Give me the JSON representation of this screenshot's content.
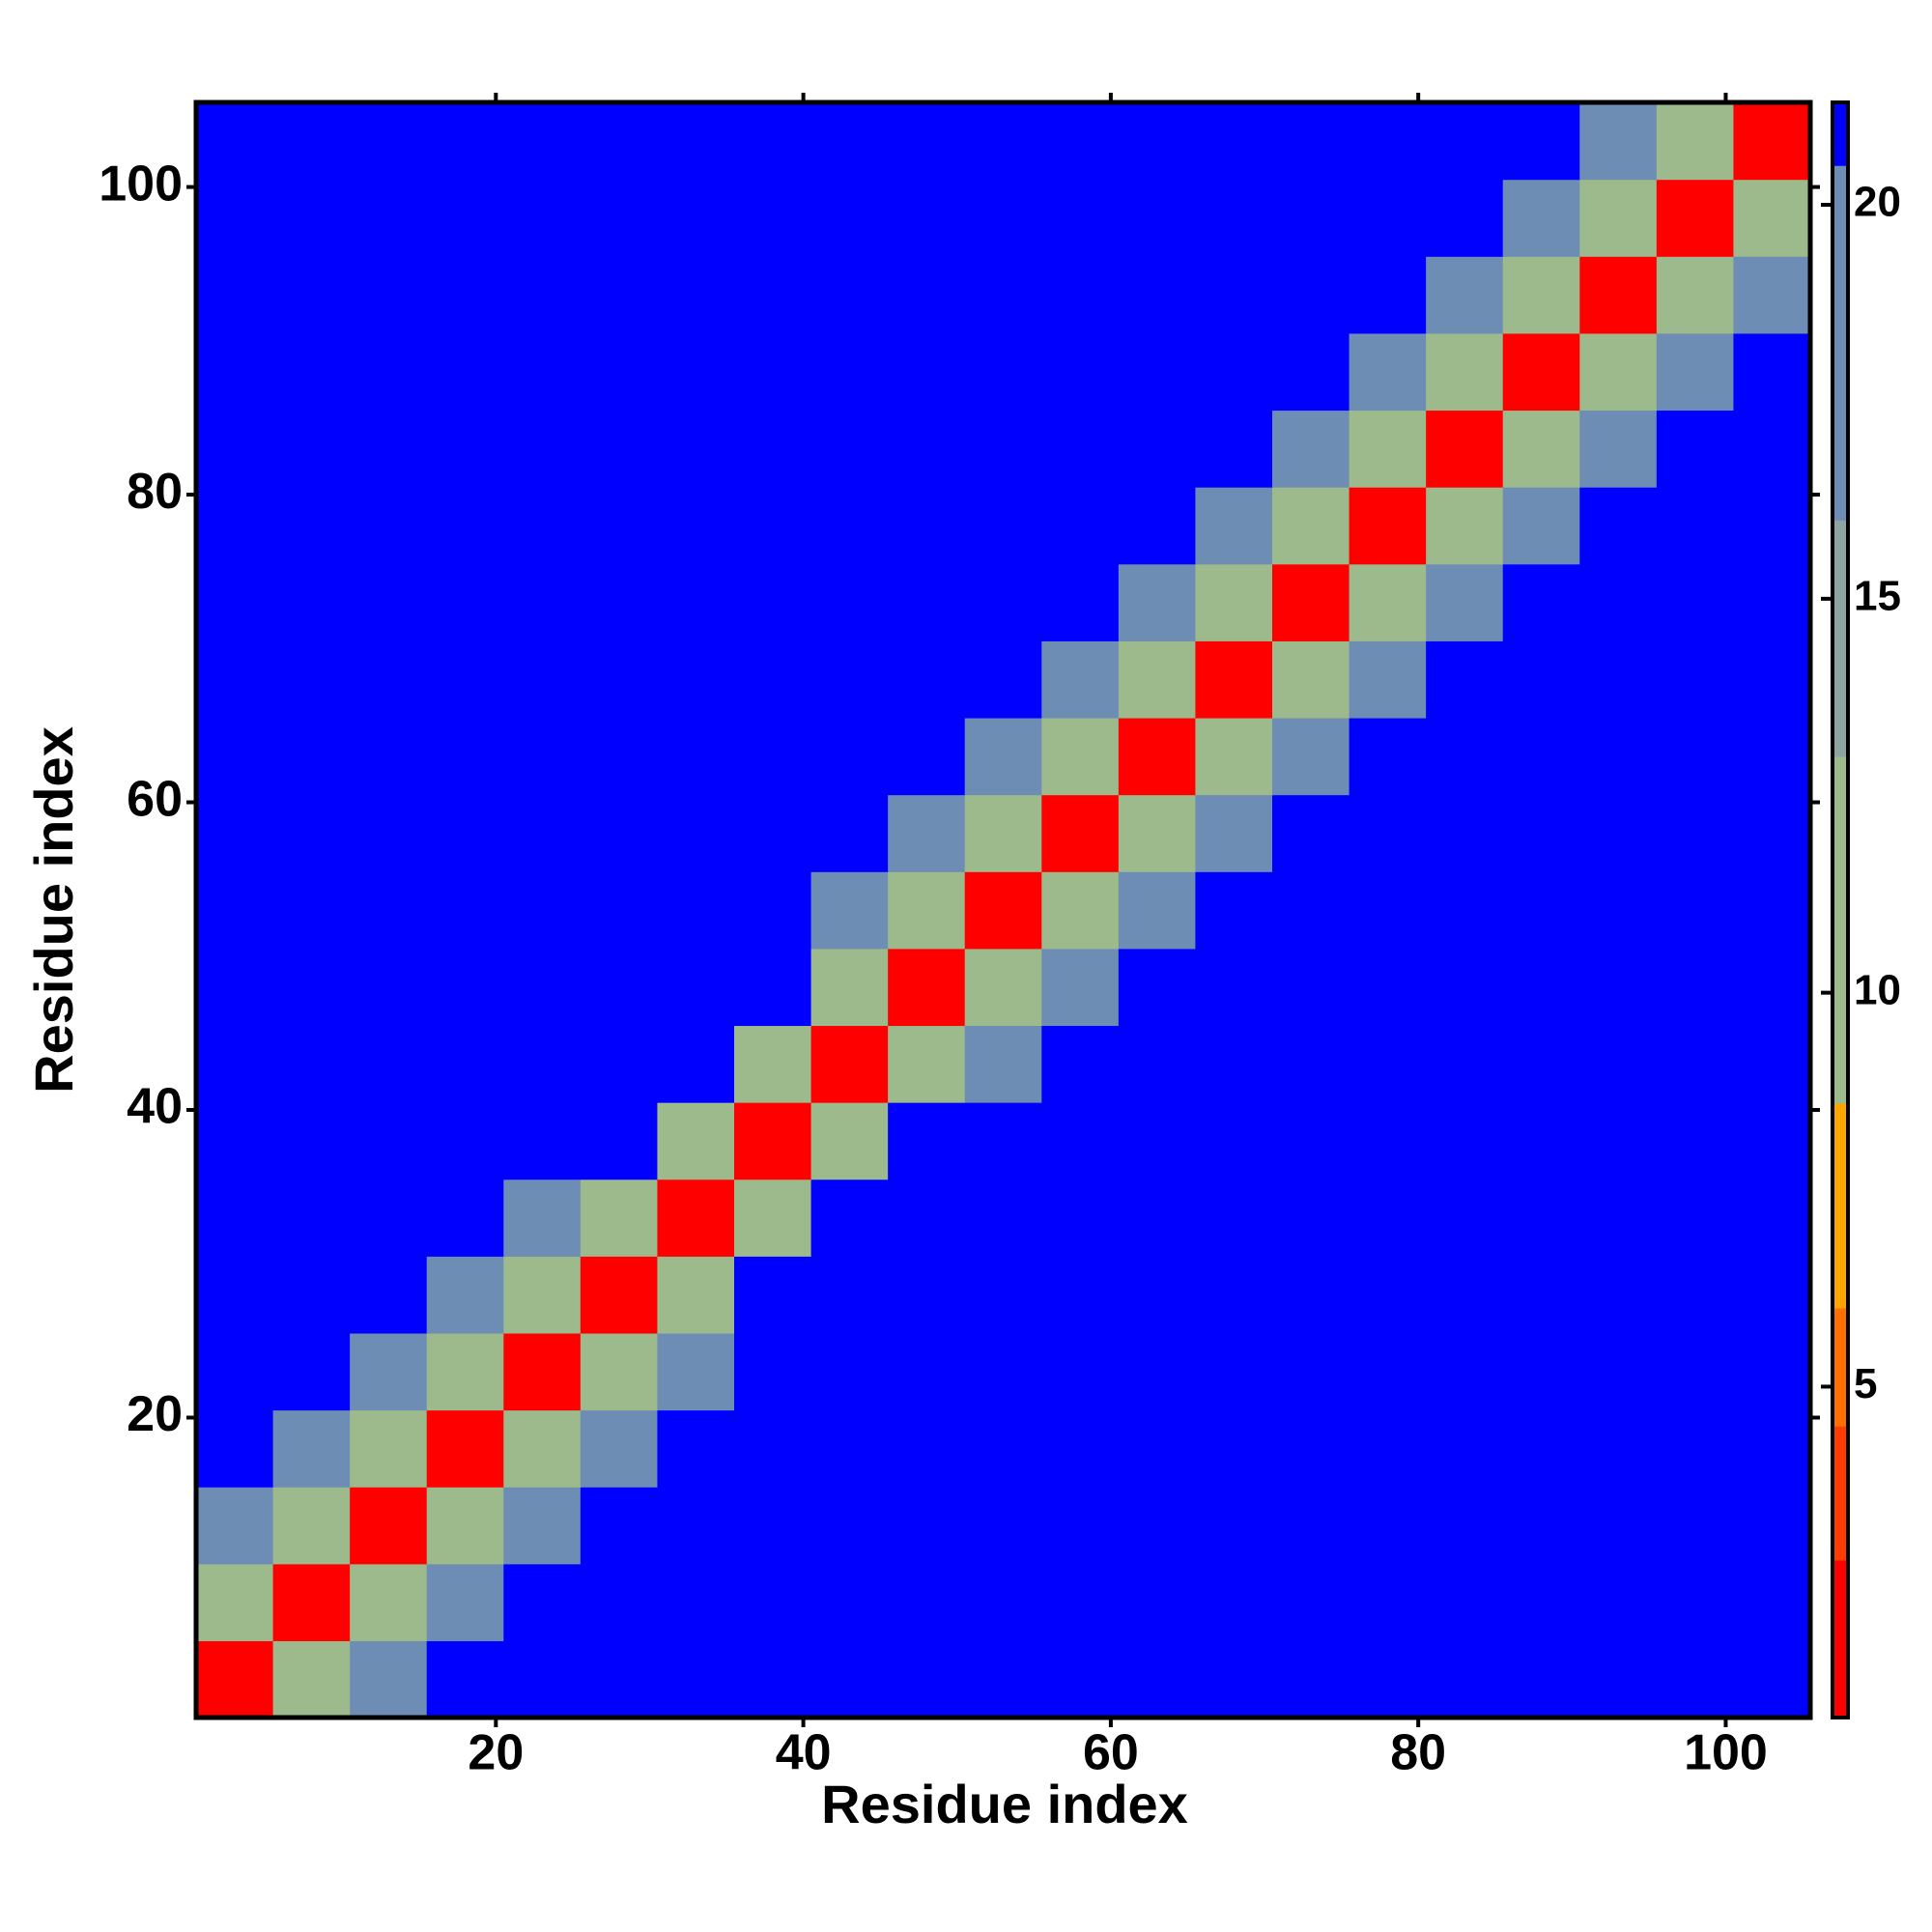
{
  "chart_data": {
    "type": "heatmap",
    "x_label": "Residue index",
    "y_label": "Residue index",
    "xbins": [
      0.5,
      5.5,
      10.5,
      15.5,
      20.5,
      25.5,
      30.5,
      35.5,
      40.5,
      45.5,
      50.5,
      55.5,
      60.5,
      65.5,
      70.5,
      75.5,
      80.5,
      85.5,
      90.5,
      95.5,
      100.5,
      105.5
    ],
    "ybins": [
      0.5,
      5.5,
      10.5,
      15.5,
      20.5,
      25.5,
      30.5,
      35.5,
      40.5,
      45.5,
      50.5,
      55.5,
      60.5,
      65.5,
      70.5,
      75.5,
      80.5,
      85.5,
      90.5,
      95.5,
      100.5,
      105.5
    ],
    "xlim": [
      0.5,
      105.5
    ],
    "ylim": [
      0.5,
      105.5
    ],
    "xticks": [
      20,
      40,
      60,
      80,
      100
    ],
    "yticks": [
      20,
      40,
      60,
      80,
      100
    ],
    "zlim": [
      0.8,
      21.3
    ],
    "zticks": [
      5,
      10,
      15,
      20
    ],
    "colorscale": [
      [
        0.8,
        "#ff0000"
      ],
      [
        2.8,
        "#ff3c00"
      ],
      [
        4.5,
        "#ff7000"
      ],
      [
        6,
        "#ffa500"
      ],
      [
        8.6,
        "#9cba8c"
      ],
      [
        13,
        "#8da4a0"
      ],
      [
        16,
        "#6d8db5"
      ],
      [
        20.5,
        "#0000ff"
      ]
    ],
    "z": [
      [
        2,
        10,
        16,
        21,
        21,
        21,
        21,
        21,
        21,
        21,
        21,
        21,
        21,
        21,
        21,
        21,
        21,
        21,
        21,
        21,
        21
      ],
      [
        10,
        2,
        10,
        16,
        21,
        21,
        21,
        21,
        21,
        21,
        21,
        21,
        21,
        21,
        21,
        21,
        21,
        21,
        21,
        21,
        21
      ],
      [
        16,
        10,
        2,
        10,
        16,
        21,
        21,
        21,
        21,
        21,
        21,
        21,
        21,
        21,
        21,
        21,
        21,
        21,
        21,
        21,
        21
      ],
      [
        21,
        16,
        10,
        2,
        10,
        16,
        21,
        21,
        21,
        21,
        21,
        21,
        21,
        21,
        21,
        21,
        21,
        21,
        21,
        21,
        21
      ],
      [
        21,
        21,
        16,
        10,
        2,
        10,
        16,
        21,
        21,
        21,
        21,
        21,
        21,
        21,
        21,
        21,
        21,
        21,
        21,
        21,
        21
      ],
      [
        21,
        21,
        21,
        16,
        10,
        2,
        10,
        21,
        21,
        21,
        21,
        21,
        21,
        21,
        21,
        21,
        21,
        21,
        21,
        21,
        21
      ],
      [
        21,
        21,
        21,
        21,
        16,
        10,
        2,
        10,
        21,
        21,
        21,
        21,
        21,
        21,
        21,
        21,
        21,
        21,
        21,
        21,
        21
      ],
      [
        21,
        21,
        21,
        21,
        21,
        21,
        10,
        2,
        10,
        21,
        21,
        21,
        21,
        21,
        21,
        21,
        21,
        21,
        21,
        21,
        21
      ],
      [
        21,
        21,
        21,
        21,
        21,
        21,
        21,
        10,
        2,
        10,
        16,
        21,
        21,
        21,
        21,
        21,
        21,
        21,
        21,
        21,
        21
      ],
      [
        21,
        21,
        21,
        21,
        21,
        21,
        21,
        21,
        10,
        2,
        10,
        16,
        21,
        21,
        21,
        21,
        21,
        21,
        21,
        21,
        21
      ],
      [
        21,
        21,
        21,
        21,
        21,
        21,
        21,
        21,
        16,
        10,
        2,
        10,
        16,
        21,
        21,
        21,
        21,
        21,
        21,
        21,
        21
      ],
      [
        21,
        21,
        21,
        21,
        21,
        21,
        21,
        21,
        21,
        16,
        10,
        2,
        10,
        16,
        21,
        21,
        21,
        21,
        21,
        21,
        21
      ],
      [
        21,
        21,
        21,
        21,
        21,
        21,
        21,
        21,
        21,
        21,
        16,
        10,
        2,
        10,
        16,
        21,
        21,
        21,
        21,
        21,
        21
      ],
      [
        21,
        21,
        21,
        21,
        21,
        21,
        21,
        21,
        21,
        21,
        21,
        16,
        10,
        2,
        10,
        16,
        21,
        21,
        21,
        21,
        21
      ],
      [
        21,
        21,
        21,
        21,
        21,
        21,
        21,
        21,
        21,
        21,
        21,
        21,
        16,
        10,
        2,
        10,
        16,
        21,
        21,
        21,
        21
      ],
      [
        21,
        21,
        21,
        21,
        21,
        21,
        21,
        21,
        21,
        21,
        21,
        21,
        21,
        16,
        10,
        2,
        10,
        16,
        21,
        21,
        21
      ],
      [
        21,
        21,
        21,
        21,
        21,
        21,
        21,
        21,
        21,
        21,
        21,
        21,
        21,
        21,
        16,
        10,
        2,
        10,
        16,
        21,
        21
      ],
      [
        21,
        21,
        21,
        21,
        21,
        21,
        21,
        21,
        21,
        21,
        21,
        21,
        21,
        21,
        21,
        16,
        10,
        2,
        10,
        16,
        21
      ],
      [
        21,
        21,
        21,
        21,
        21,
        21,
        21,
        21,
        21,
        21,
        21,
        21,
        21,
        21,
        21,
        21,
        16,
        10,
        2,
        10,
        16
      ],
      [
        21,
        21,
        21,
        21,
        21,
        21,
        21,
        21,
        21,
        21,
        21,
        21,
        21,
        21,
        21,
        21,
        21,
        16,
        10,
        2,
        10
      ],
      [
        21,
        21,
        21,
        21,
        21,
        21,
        21,
        21,
        21,
        21,
        21,
        21,
        21,
        21,
        21,
        21,
        21,
        21,
        16,
        10,
        2
      ]
    ]
  }
}
